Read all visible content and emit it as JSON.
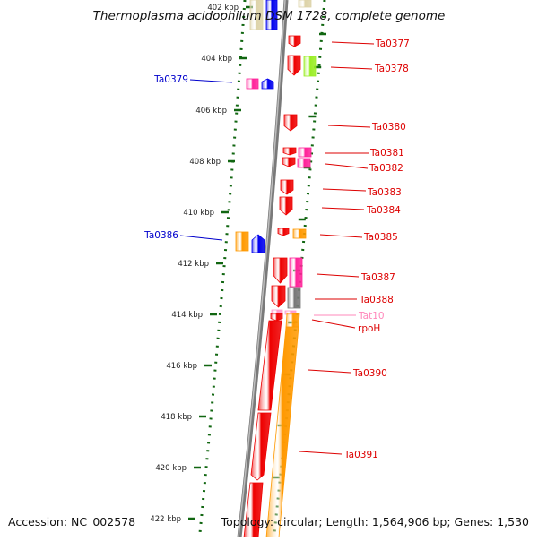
{
  "title": "Thermoplasma acidophilum DSM 1728, complete genome",
  "footer": {
    "accession": "Accession: NC_002578",
    "info": "Topology: circular; Length: 1,564,906 bp; Genes: 1,530"
  },
  "colors": {
    "red": "#ee0000",
    "pink": "#ff2299",
    "light_pink": "#ff99cc",
    "orange": "#ff9900",
    "blue": "#0000ee",
    "green": "#99ee22",
    "gray": "#777777",
    "tan": "#ddd3a8",
    "tick_green": "#116611",
    "label_red": "#dd0000",
    "label_blue": "#0000cc",
    "label_pink": "#ff88bb"
  },
  "ruler": {
    "unit": "kbp",
    "labels": [
      "402 kbp",
      "404 kbp",
      "406 kbp",
      "408 kbp",
      "410 kbp",
      "412 kbp",
      "414 kbp",
      "416 kbp",
      "418 kbp",
      "420 kbp",
      "422 kbp"
    ]
  },
  "genes": [
    {
      "name": "Ta0377",
      "color": "red",
      "strand": "+",
      "side": "right"
    },
    {
      "name": "Ta0378",
      "color": "red",
      "strand": "+",
      "side": "right"
    },
    {
      "name": "Ta0379",
      "color": "pink",
      "strand": "-",
      "side": "left"
    },
    {
      "name": "Ta0380",
      "color": "red",
      "strand": "+",
      "side": "right"
    },
    {
      "name": "Ta0381",
      "color": "red",
      "strand": "+",
      "side": "right"
    },
    {
      "name": "Ta0382",
      "color": "red",
      "strand": "+",
      "side": "right"
    },
    {
      "name": "Ta0383",
      "color": "red",
      "strand": "+",
      "side": "right"
    },
    {
      "name": "Ta0384",
      "color": "red",
      "strand": "+",
      "side": "right"
    },
    {
      "name": "Ta0385",
      "color": "red",
      "strand": "+",
      "side": "right"
    },
    {
      "name": "Ta0386",
      "color": "orange",
      "strand": "-",
      "side": "left"
    },
    {
      "name": "Ta0387",
      "color": "red",
      "strand": "+",
      "side": "right"
    },
    {
      "name": "Ta0388",
      "color": "red",
      "strand": "+",
      "side": "right"
    },
    {
      "name": "Tat10",
      "color": "light_pink",
      "strand": "+",
      "side": "right"
    },
    {
      "name": "rpoH",
      "color": "red",
      "strand": "+",
      "side": "right"
    },
    {
      "name": "Ta0390",
      "color": "red",
      "strand": "+",
      "side": "right"
    },
    {
      "name": "Ta0391",
      "color": "red",
      "strand": "+",
      "side": "right"
    }
  ]
}
